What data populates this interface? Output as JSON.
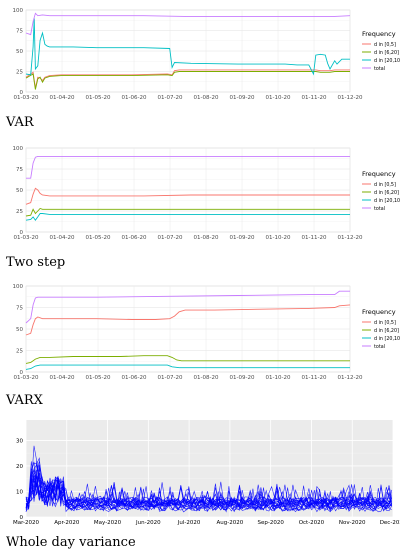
{
  "chart_data": [
    {
      "type": "line",
      "caption": "VAR",
      "x_ticks": [
        "01-03-20",
        "01-04-20",
        "01-05-20",
        "01-06-20",
        "01-07-20",
        "01-08-20",
        "01-09-20",
        "01-10-20",
        "01-11-20",
        "01-12-20"
      ],
      "y_ticks": [
        "0",
        "25",
        "50",
        "75",
        "100"
      ],
      "ylim": [
        0,
        100
      ],
      "grid": true,
      "legend": {
        "title": "Frequency",
        "position": "right",
        "entries": [
          "d in [0,5]",
          "d in [6,20]",
          "d in [20,100]",
          "total"
        ]
      },
      "series": [
        {
          "name": "d in [0,5]",
          "color": "#f8766d",
          "points": [
            [
              0,
              18
            ],
            [
              6,
              24
            ],
            [
              8,
              5
            ],
            [
              10,
              18
            ],
            [
              12,
              17
            ],
            [
              14,
              14
            ],
            [
              16,
              18
            ],
            [
              20,
              20
            ],
            [
              30,
              21
            ],
            [
              60,
              21
            ],
            [
              90,
              21
            ],
            [
              120,
              22
            ],
            [
              124,
              21
            ],
            [
              126,
              26
            ],
            [
              130,
              27
            ],
            [
              160,
              27
            ],
            [
              200,
              27
            ],
            [
              230,
              27
            ],
            [
              246,
              27
            ],
            [
              250,
              26
            ],
            [
              258,
              26
            ],
            [
              262,
              27
            ],
            [
              275,
              27
            ]
          ]
        },
        {
          "name": "d in [6,20]",
          "color": "#7cae00",
          "points": [
            [
              0,
              17
            ],
            [
              6,
              22
            ],
            [
              8,
              3
            ],
            [
              10,
              16
            ],
            [
              12,
              18
            ],
            [
              14,
              12
            ],
            [
              16,
              17
            ],
            [
              20,
              19
            ],
            [
              30,
              20
            ],
            [
              60,
              20
            ],
            [
              90,
              20
            ],
            [
              120,
              21
            ],
            [
              124,
              20
            ],
            [
              126,
              24
            ],
            [
              130,
              25
            ],
            [
              160,
              25
            ],
            [
              200,
              25
            ],
            [
              230,
              25
            ],
            [
              246,
              25
            ],
            [
              250,
              24
            ],
            [
              258,
              24
            ],
            [
              262,
              25
            ],
            [
              275,
              25
            ]
          ]
        },
        {
          "name": "d in [20,100]",
          "color": "#00bfc4",
          "points": [
            [
              0,
              22
            ],
            [
              4,
              21
            ],
            [
              6,
              55
            ],
            [
              7,
              90
            ],
            [
              8,
              28
            ],
            [
              10,
              32
            ],
            [
              12,
              63
            ],
            [
              14,
              72
            ],
            [
              16,
              58
            ],
            [
              18,
              56
            ],
            [
              20,
              55
            ],
            [
              40,
              55
            ],
            [
              60,
              54
            ],
            [
              100,
              54
            ],
            [
              122,
              53
            ],
            [
              124,
              30
            ],
            [
              126,
              36
            ],
            [
              140,
              35
            ],
            [
              180,
              34
            ],
            [
              220,
              34
            ],
            [
              230,
              33
            ],
            [
              240,
              33
            ],
            [
              244,
              22
            ],
            [
              246,
              45
            ],
            [
              250,
              46
            ],
            [
              254,
              45
            ],
            [
              256,
              35
            ],
            [
              258,
              28
            ],
            [
              262,
              38
            ],
            [
              264,
              34
            ],
            [
              268,
              40
            ],
            [
              275,
              40
            ]
          ]
        },
        {
          "name": "total",
          "color": "#c77cff",
          "points": [
            [
              0,
              72
            ],
            [
              4,
              70
            ],
            [
              6,
              86
            ],
            [
              8,
              96
            ],
            [
              10,
              93
            ],
            [
              14,
              94
            ],
            [
              20,
              93
            ],
            [
              60,
              93
            ],
            [
              100,
              93
            ],
            [
              140,
              92
            ],
            [
              180,
              92
            ],
            [
              220,
              92
            ],
            [
              260,
              92
            ],
            [
              275,
              93
            ]
          ]
        }
      ]
    },
    {
      "type": "line",
      "caption": "Two step",
      "x_ticks": [
        "01-03-20",
        "01-04-20",
        "01-05-20",
        "01-06-20",
        "01-07-20",
        "01-08-20",
        "01-09-20",
        "01-10-20",
        "01-11-20",
        "01-12-20"
      ],
      "y_ticks": [
        "0",
        "25",
        "50",
        "75",
        "100"
      ],
      "ylim": [
        0,
        100
      ],
      "grid": true,
      "legend": {
        "title": "Frequency",
        "position": "right",
        "entries": [
          "d in [0,5]",
          "d in [6,20]",
          "d in [20,100]",
          "total"
        ]
      },
      "series": [
        {
          "name": "d in [0,5]",
          "color": "#f8766d",
          "points": [
            [
              0,
              33
            ],
            [
              4,
              35
            ],
            [
              6,
              45
            ],
            [
              8,
              52
            ],
            [
              10,
              50
            ],
            [
              12,
              46
            ],
            [
              14,
              44
            ],
            [
              20,
              43
            ],
            [
              60,
              43
            ],
            [
              100,
              43
            ],
            [
              140,
              44
            ],
            [
              180,
              44
            ],
            [
              220,
              44
            ],
            [
              275,
              44
            ]
          ]
        },
        {
          "name": "d in [6,20]",
          "color": "#7cae00",
          "points": [
            [
              0,
              19
            ],
            [
              4,
              20
            ],
            [
              6,
              27
            ],
            [
              8,
              22
            ],
            [
              10,
              25
            ],
            [
              12,
              28
            ],
            [
              14,
              27
            ],
            [
              20,
              27
            ],
            [
              60,
              27
            ],
            [
              100,
              27
            ],
            [
              140,
              27
            ],
            [
              180,
              27
            ],
            [
              220,
              27
            ],
            [
              275,
              27
            ]
          ]
        },
        {
          "name": "d in [20,100]",
          "color": "#00bfc4",
          "points": [
            [
              0,
              14
            ],
            [
              4,
              15
            ],
            [
              6,
              18
            ],
            [
              8,
              14
            ],
            [
              10,
              18
            ],
            [
              12,
              22
            ],
            [
              14,
              22
            ],
            [
              20,
              21
            ],
            [
              60,
              21
            ],
            [
              100,
              21
            ],
            [
              140,
              21
            ],
            [
              180,
              21
            ],
            [
              220,
              21
            ],
            [
              275,
              21
            ]
          ]
        },
        {
          "name": "total",
          "color": "#c77cff",
          "points": [
            [
              0,
              64
            ],
            [
              4,
              64
            ],
            [
              6,
              82
            ],
            [
              8,
              89
            ],
            [
              10,
              90
            ],
            [
              14,
              90
            ],
            [
              60,
              90
            ],
            [
              120,
              90
            ],
            [
              180,
              90
            ],
            [
              240,
              90
            ],
            [
              275,
              90
            ]
          ]
        }
      ]
    },
    {
      "type": "line",
      "caption": "VARX",
      "x_ticks": [
        "01-03-20",
        "01-04-20",
        "01-05-20",
        "01-06-20",
        "01-07-20",
        "01-08-20",
        "01-09-20",
        "01-10-20",
        "01-11-20",
        "01-12-20"
      ],
      "y_ticks": [
        "0",
        "25",
        "50",
        "75",
        "100"
      ],
      "ylim": [
        0,
        100
      ],
      "grid": true,
      "legend": {
        "title": "Frequency",
        "position": "right",
        "entries": [
          "d in [0,5]",
          "d in [6,20]",
          "d in [20,100]",
          "total"
        ]
      },
      "series": [
        {
          "name": "d in [0,5]",
          "color": "#f8766d",
          "points": [
            [
              0,
              43
            ],
            [
              4,
              45
            ],
            [
              6,
              55
            ],
            [
              8,
              62
            ],
            [
              10,
              64
            ],
            [
              14,
              62
            ],
            [
              20,
              62
            ],
            [
              60,
              62
            ],
            [
              90,
              61
            ],
            [
              110,
              61
            ],
            [
              122,
              62
            ],
            [
              126,
              65
            ],
            [
              130,
              70
            ],
            [
              135,
              72
            ],
            [
              160,
              72
            ],
            [
              200,
              73
            ],
            [
              240,
              74
            ],
            [
              262,
              75
            ],
            [
              266,
              77
            ],
            [
              275,
              78
            ]
          ]
        },
        {
          "name": "d in [6,20]",
          "color": "#7cae00",
          "points": [
            [
              0,
              10
            ],
            [
              4,
              11
            ],
            [
              8,
              15
            ],
            [
              12,
              17
            ],
            [
              20,
              17
            ],
            [
              40,
              18
            ],
            [
              60,
              18
            ],
            [
              80,
              18
            ],
            [
              100,
              19
            ],
            [
              120,
              19
            ],
            [
              124,
              17
            ],
            [
              128,
              14
            ],
            [
              132,
              13
            ],
            [
              160,
              13
            ],
            [
              200,
              13
            ],
            [
              240,
              13
            ],
            [
              275,
              13
            ]
          ]
        },
        {
          "name": "d in [20,100]",
          "color": "#00bfc4",
          "points": [
            [
              0,
              3
            ],
            [
              4,
              4
            ],
            [
              8,
              7
            ],
            [
              12,
              8
            ],
            [
              20,
              8
            ],
            [
              60,
              8
            ],
            [
              100,
              8
            ],
            [
              120,
              8
            ],
            [
              124,
              6
            ],
            [
              130,
              5
            ],
            [
              160,
              5
            ],
            [
              200,
              5
            ],
            [
              240,
              5
            ],
            [
              275,
              5
            ]
          ]
        },
        {
          "name": "total",
          "color": "#c77cff",
          "points": [
            [
              0,
              57
            ],
            [
              4,
              62
            ],
            [
              6,
              78
            ],
            [
              8,
              86
            ],
            [
              10,
              87
            ],
            [
              14,
              87
            ],
            [
              60,
              87
            ],
            [
              120,
              88
            ],
            [
              180,
              89
            ],
            [
              240,
              90
            ],
            [
              262,
              90
            ],
            [
              266,
              94
            ],
            [
              275,
              94
            ]
          ]
        }
      ]
    },
    {
      "type": "line",
      "caption": "Whole day variance",
      "x_ticks": [
        "Mar-2020",
        "Apr-2020",
        "May-2020",
        "Jun-2020",
        "Jul-2020",
        "Aug-2020",
        "Sep-2020",
        "Oct-2020",
        "Nov-2020",
        "Dec-2020"
      ],
      "y_ticks": [
        "0",
        "10",
        "20",
        "30"
      ],
      "ylim": [
        0,
        38
      ],
      "grid": true,
      "color": "#0000ff",
      "n_series": 20
    }
  ]
}
